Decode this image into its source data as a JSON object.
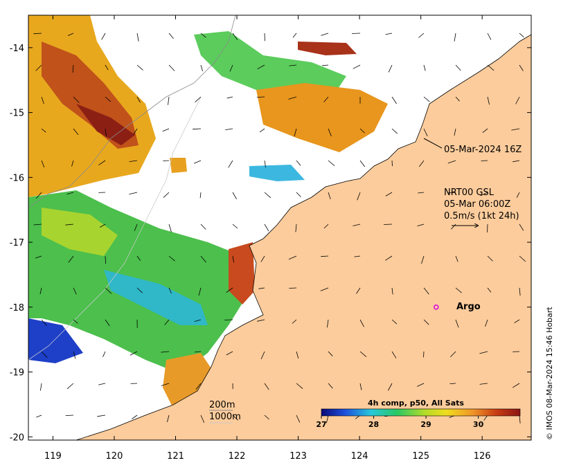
{
  "map": {
    "x_ticks": [
      "119",
      "120",
      "121",
      "122",
      "123",
      "124",
      "125",
      "126"
    ],
    "y_ticks": [
      "-14",
      "-15",
      "-16",
      "-17",
      "-18",
      "-19",
      "-20"
    ],
    "x_range": [
      118.6,
      126.8
    ],
    "y_range": [
      -20.05,
      -13.5
    ],
    "land_color": "#fccc9c",
    "annotations": {
      "timestamp": "05-Mar-2024 16Z",
      "current_source": "NRT00 GSL",
      "current_time": "05-Mar 06:00Z",
      "current_scale": "0.5m/s (1kt 24h)",
      "argo_label": "Argo",
      "contour_200": "200m",
      "contour_1000": "1000m"
    },
    "colorbar": {
      "title": "4h comp, p50, All Sats",
      "ticks": [
        "27",
        "28",
        "29",
        "30"
      ],
      "range": [
        27,
        30.8
      ],
      "colors": [
        "#0a0a78",
        "#1e50dc",
        "#28c8dc",
        "#28c864",
        "#b4dc28",
        "#f0dc1e",
        "#f09628",
        "#c83c14",
        "#8c1414"
      ]
    },
    "argo": {
      "lon": 125.25,
      "lat": -18.0,
      "color": "#e000e0"
    },
    "credit": "© IMOS 08-Mar-2024 15:46 Hobart"
  }
}
